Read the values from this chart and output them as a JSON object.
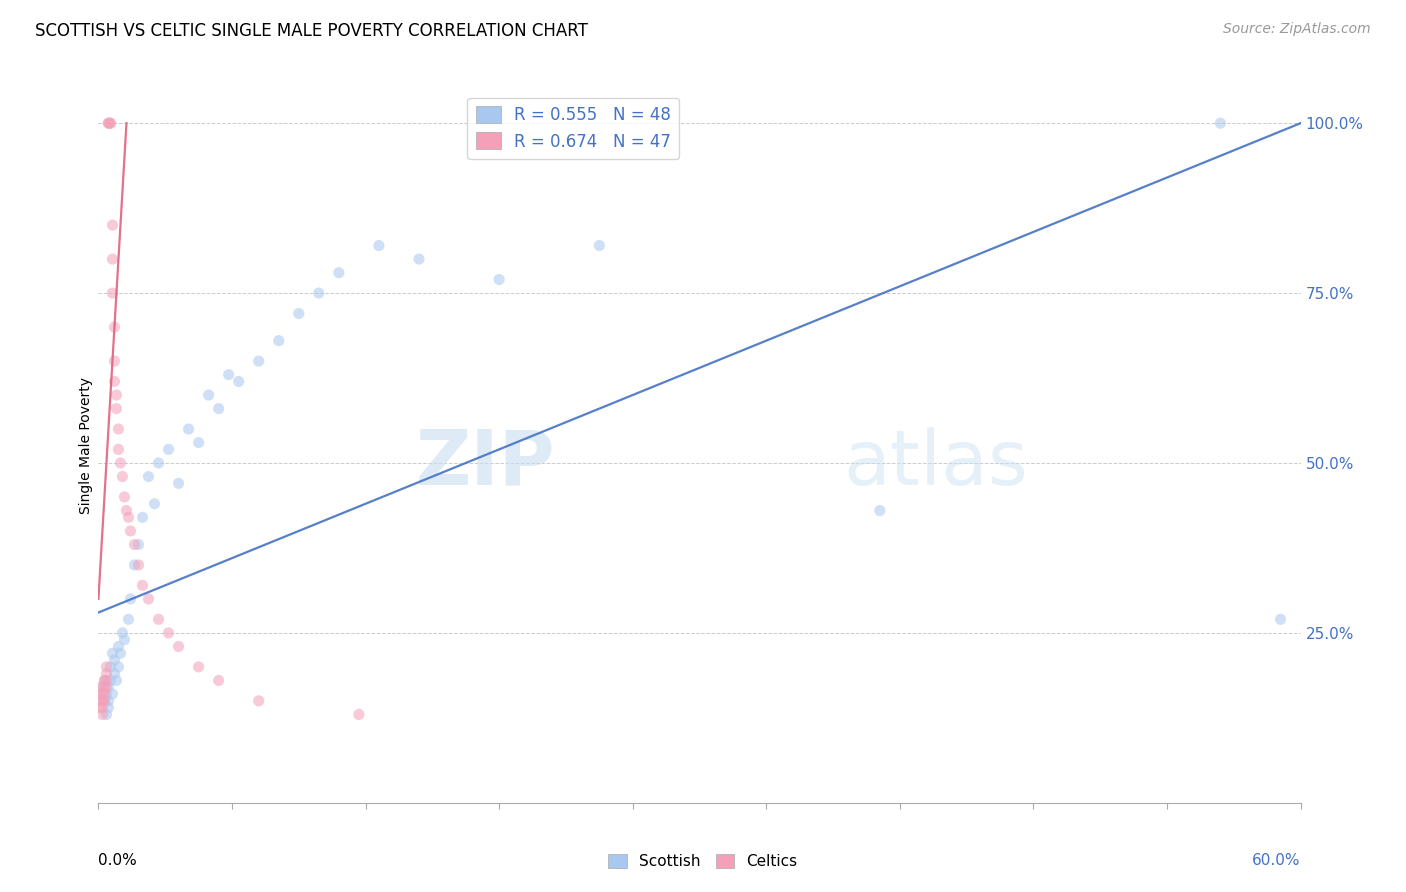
{
  "title": "SCOTTISH VS CELTIC SINGLE MALE POVERTY CORRELATION CHART",
  "source": "Source: ZipAtlas.com",
  "ylabel": "Single Male Poverty",
  "xlim": [
    0.0,
    0.6
  ],
  "ylim": [
    0.0,
    1.05
  ],
  "watermark_zip": "ZIP",
  "watermark_atlas": "atlas",
  "legend_blue_label": "R = 0.555   N = 48",
  "legend_pink_label": "R = 0.674   N = 47",
  "blue_dot_color": "#a8c8f0",
  "blue_line_color": "#4472c4",
  "pink_dot_color": "#f4a0b8",
  "pink_line_color": "#e06080",
  "scottish_x": [
    0.002,
    0.003,
    0.003,
    0.004,
    0.004,
    0.005,
    0.005,
    0.005,
    0.006,
    0.006,
    0.007,
    0.007,
    0.008,
    0.008,
    0.009,
    0.01,
    0.01,
    0.011,
    0.012,
    0.013,
    0.015,
    0.016,
    0.018,
    0.02,
    0.022,
    0.025,
    0.028,
    0.03,
    0.035,
    0.04,
    0.045,
    0.05,
    0.055,
    0.06,
    0.065,
    0.07,
    0.08,
    0.09,
    0.1,
    0.11,
    0.12,
    0.14,
    0.16,
    0.2,
    0.25,
    0.39,
    0.56,
    0.59
  ],
  "scottish_y": [
    0.17,
    0.15,
    0.18,
    0.13,
    0.16,
    0.14,
    0.15,
    0.17,
    0.18,
    0.2,
    0.16,
    0.22,
    0.19,
    0.21,
    0.18,
    0.2,
    0.23,
    0.22,
    0.25,
    0.24,
    0.27,
    0.3,
    0.35,
    0.38,
    0.42,
    0.48,
    0.44,
    0.5,
    0.52,
    0.47,
    0.55,
    0.53,
    0.6,
    0.58,
    0.63,
    0.62,
    0.65,
    0.68,
    0.72,
    0.75,
    0.78,
    0.82,
    0.8,
    0.77,
    0.82,
    0.43,
    1.0,
    0.27
  ],
  "celtics_x": [
    0.001,
    0.001,
    0.001,
    0.001,
    0.002,
    0.002,
    0.002,
    0.002,
    0.003,
    0.003,
    0.003,
    0.003,
    0.004,
    0.004,
    0.004,
    0.004,
    0.005,
    0.005,
    0.006,
    0.006,
    0.007,
    0.007,
    0.007,
    0.008,
    0.008,
    0.008,
    0.009,
    0.009,
    0.01,
    0.01,
    0.011,
    0.012,
    0.013,
    0.014,
    0.015,
    0.016,
    0.018,
    0.02,
    0.022,
    0.025,
    0.03,
    0.035,
    0.04,
    0.05,
    0.06,
    0.08,
    0.13
  ],
  "celtics_y": [
    0.17,
    0.16,
    0.15,
    0.14,
    0.16,
    0.15,
    0.14,
    0.13,
    0.18,
    0.17,
    0.16,
    0.15,
    0.2,
    0.19,
    0.18,
    0.17,
    1.0,
    1.0,
    1.0,
    1.0,
    0.85,
    0.8,
    0.75,
    0.7,
    0.65,
    0.62,
    0.6,
    0.58,
    0.55,
    0.52,
    0.5,
    0.48,
    0.45,
    0.43,
    0.42,
    0.4,
    0.38,
    0.35,
    0.32,
    0.3,
    0.27,
    0.25,
    0.23,
    0.2,
    0.18,
    0.15,
    0.13
  ],
  "blue_line_x0": 0.0,
  "blue_line_y0": 0.28,
  "blue_line_x1": 0.6,
  "blue_line_y1": 1.0,
  "pink_line_x0": 0.0,
  "pink_line_y0": 0.3,
  "pink_line_x1": 0.014,
  "pink_line_y1": 1.0,
  "yticks": [
    0.0,
    0.25,
    0.5,
    0.75,
    1.0
  ],
  "ytick_labels_right": [
    "",
    "25.0%",
    "50.0%",
    "75.0%",
    "100.0%"
  ],
  "grid_color": "#cccccc",
  "background_color": "#ffffff",
  "title_fontsize": 12,
  "source_fontsize": 10,
  "marker_size": 65,
  "marker_alpha": 0.55,
  "line_width": 1.6
}
